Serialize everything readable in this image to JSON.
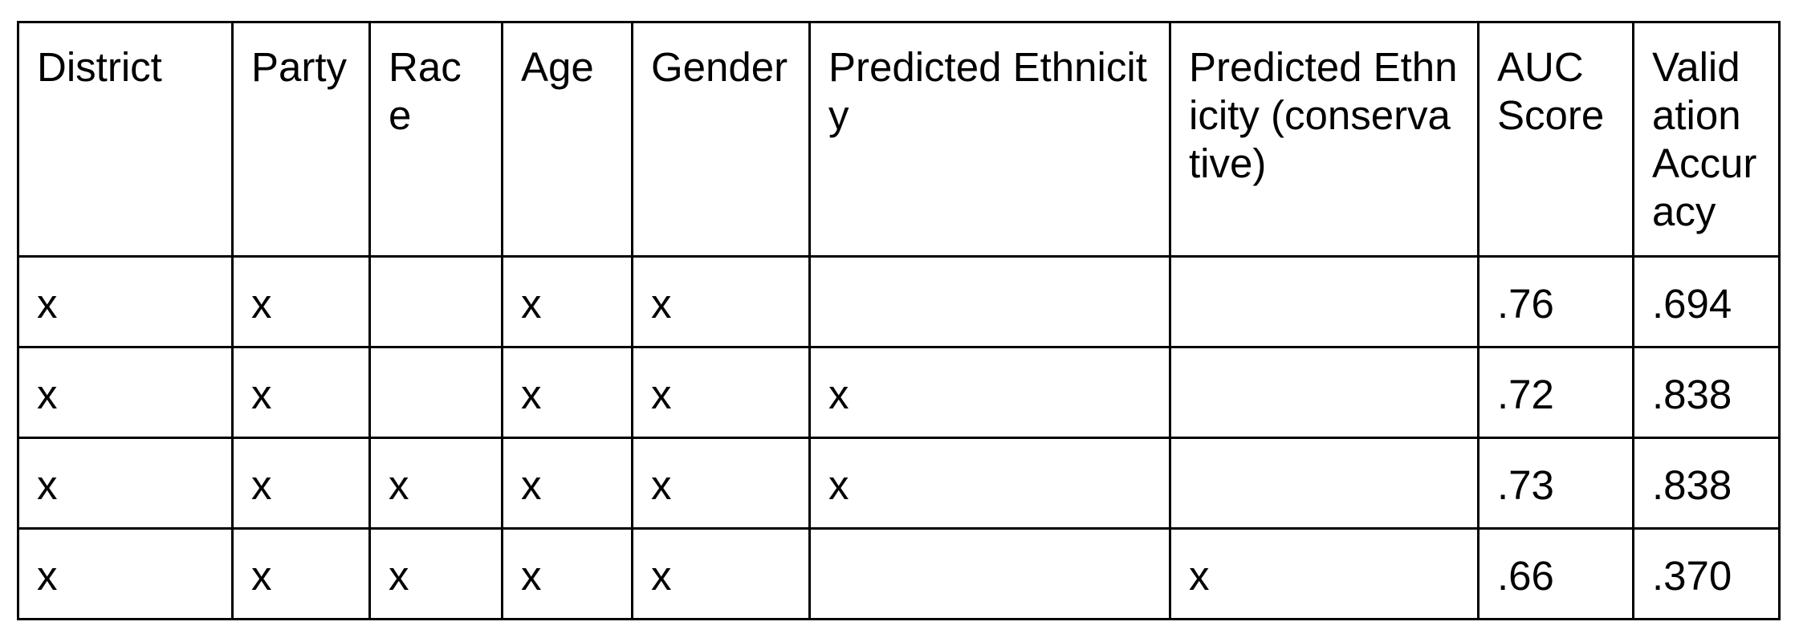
{
  "table": {
    "headers": [
      "District",
      "Party",
      "Race",
      "Age",
      "Gender",
      "Predicted Ethnicity",
      "Predicted Ethnicity (conservative)",
      "AUC Score",
      "Validation Accuracy"
    ],
    "rows": [
      [
        "x",
        "x",
        "",
        "x",
        "x",
        "",
        "",
        ".76",
        ".694"
      ],
      [
        "x",
        "x",
        "",
        "x",
        "x",
        "x",
        "",
        ".72",
        ".838"
      ],
      [
        "x",
        "x",
        "x",
        "x",
        "x",
        "x",
        "",
        ".73",
        ".838"
      ],
      [
        "x",
        "x",
        "x",
        "x",
        "x",
        "",
        "x",
        ".66",
        ".370"
      ]
    ]
  }
}
